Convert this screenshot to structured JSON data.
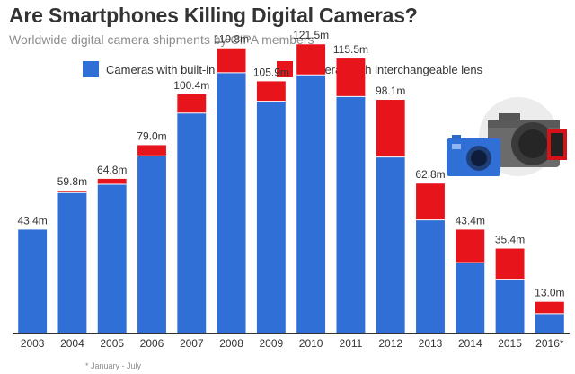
{
  "title": "Are Smartphones Killing Digital Cameras?",
  "subtitle": "Worldwide digital camera shipments by CIPA members",
  "footnote": "* January - July",
  "colors": {
    "built_in": "#2f6fd6",
    "interchangeable": "#e8141b",
    "axis": "#333333",
    "label": "#333333"
  },
  "icons": [
    "compact-camera-icon",
    "dslr-camera-icon"
  ],
  "chart_data": {
    "type": "bar",
    "stacked": true,
    "categories": [
      "2003",
      "2004",
      "2005",
      "2006",
      "2007",
      "2008",
      "2009",
      "2010",
      "2011",
      "2012",
      "2013",
      "2014",
      "2015",
      "2016*"
    ],
    "series": [
      {
        "name": "Cameras with built-in lens",
        "values": [
          43.4,
          59.0,
          62.5,
          74.5,
          92.5,
          109.5,
          97.5,
          108.6,
          99.5,
          74.0,
          47.5,
          29.5,
          22.5,
          8.0
        ]
      },
      {
        "name": "Cameras with interchangeable lens",
        "values": [
          0,
          0.8,
          2.3,
          4.5,
          7.9,
          10.3,
          8.4,
          12.9,
          16.0,
          24.1,
          15.3,
          13.9,
          12.9,
          5.0
        ]
      }
    ],
    "totals": [
      "43.4m",
      "59.8m",
      "64.8m",
      "79.0m",
      "100.4m",
      "119.8m",
      "105.9m",
      "121.5m",
      "115.5m",
      "98.1m",
      "62.8m",
      "43.4m",
      "35.4m",
      "13.0m"
    ],
    "ylim": [
      0,
      125
    ],
    "grid": false,
    "legend": "top"
  }
}
